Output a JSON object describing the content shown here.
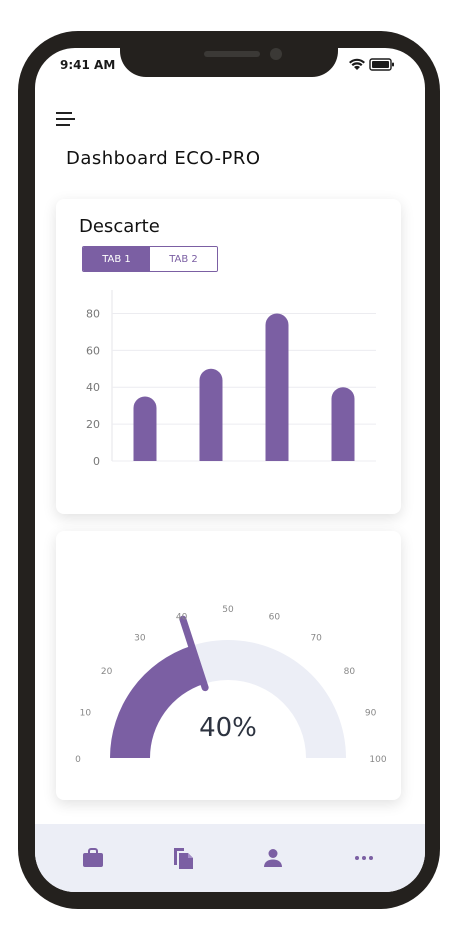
{
  "status_bar": {
    "time": "9:41 AM"
  },
  "header": {
    "title": "Dashboard ECO-PRO"
  },
  "card_discard": {
    "title": "Descarte",
    "tabs": [
      {
        "label": "TAB 1",
        "active": true
      },
      {
        "label": "TAB 2",
        "active": false
      }
    ]
  },
  "chart_data": {
    "type": "bar",
    "categories": [
      "",
      "",
      "",
      ""
    ],
    "values": [
      35,
      50,
      80,
      40
    ],
    "ylim": [
      0,
      90
    ],
    "yticks": [
      0,
      20,
      40,
      60,
      80
    ],
    "bar_color": "#7b5fa3",
    "grid": true
  },
  "gauge": {
    "value": 40,
    "value_label": "40%",
    "ticks": [
      "0",
      "10",
      "20",
      "30",
      "40",
      "50",
      "60",
      "70",
      "80",
      "90",
      "100"
    ],
    "min": 0,
    "max": 100,
    "fill_color": "#7b5fa3",
    "track_color": "#eceef6"
  },
  "bottom_nav": {
    "items": [
      {
        "icon": "briefcase-icon"
      },
      {
        "icon": "documents-icon"
      },
      {
        "icon": "person-icon"
      },
      {
        "icon": "more-icon"
      }
    ]
  },
  "colors": {
    "accent": "#7b5fa3",
    "frame": "#24211e",
    "nav_bg": "#eceef6"
  }
}
